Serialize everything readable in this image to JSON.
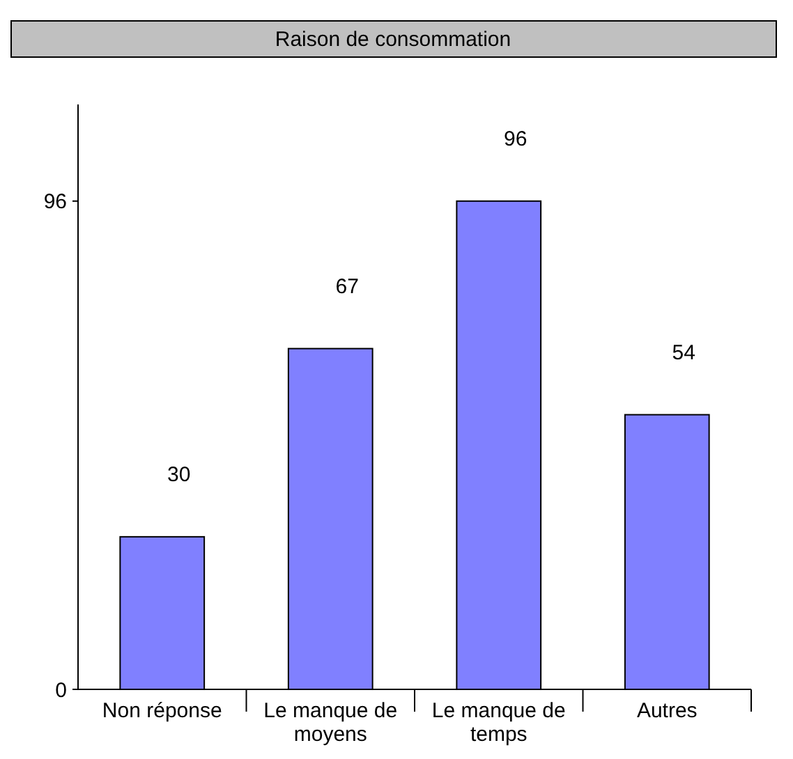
{
  "chart_data": {
    "type": "bar",
    "title": "Raison de consommation",
    "categories": [
      "Non réponse",
      "Le manque de moyens",
      "Le manque de temps",
      "Autres"
    ],
    "values": [
      30,
      67,
      96,
      54
    ],
    "color": "#8080ff",
    "ylim": [
      0,
      115
    ],
    "yticks": [
      0,
      96
    ],
    "data_labels": true
  }
}
